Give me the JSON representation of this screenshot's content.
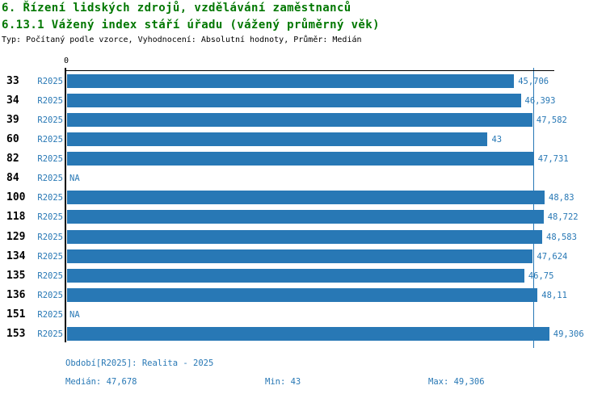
{
  "title": "6. Řízení lidských zdrojů, vzdělávání zaměstnanců",
  "subtitle": "6.13.1 Vážený index stáří úřadu (vážený průměrný věk)",
  "meta_line": "Typ: Počítaný podle vzorce, Vyhodnocení: Absolutní hodnoty, Průměr: Medián",
  "colors": {
    "bar": "#2878b5",
    "blue_text": "#2878b5",
    "title_green": "#007700",
    "axis": "#000000",
    "background": "#ffffff"
  },
  "chart_data": {
    "type": "bar",
    "orientation": "horizontal",
    "title": "6.13.1 Vážený index stáří úřadu (vážený průměrný věk)",
    "xlabel": "",
    "ylabel": "",
    "xlim": [
      0,
      49.82
    ],
    "x_tick_labels": [
      "0"
    ],
    "grid": false,
    "legend_position": "none",
    "series_name": "R2025",
    "median_value": 47.678,
    "min_value": 43,
    "max_value": 49.306,
    "rows": [
      {
        "id": "33",
        "period": "R2025",
        "value": 45.706,
        "label": "45,706"
      },
      {
        "id": "34",
        "period": "R2025",
        "value": 46.393,
        "label": "46,393"
      },
      {
        "id": "39",
        "period": "R2025",
        "value": 47.582,
        "label": "47,582"
      },
      {
        "id": "60",
        "period": "R2025",
        "value": 43,
        "label": "43"
      },
      {
        "id": "82",
        "period": "R2025",
        "value": 47.731,
        "label": "47,731"
      },
      {
        "id": "84",
        "period": "R2025",
        "value": null,
        "label": "NA"
      },
      {
        "id": "100",
        "period": "R2025",
        "value": 48.83,
        "label": "48,83"
      },
      {
        "id": "118",
        "period": "R2025",
        "value": 48.722,
        "label": "48,722"
      },
      {
        "id": "129",
        "period": "R2025",
        "value": 48.583,
        "label": "48,583"
      },
      {
        "id": "134",
        "period": "R2025",
        "value": 47.624,
        "label": "47,624"
      },
      {
        "id": "135",
        "period": "R2025",
        "value": 46.75,
        "label": "46,75"
      },
      {
        "id": "136",
        "period": "R2025",
        "value": 48.11,
        "label": "48,11"
      },
      {
        "id": "151",
        "period": "R2025",
        "value": null,
        "label": "NA"
      },
      {
        "id": "153",
        "period": "R2025",
        "value": 49.306,
        "label": "49,306"
      }
    ]
  },
  "footer": {
    "period_line": "Období[R2025]: Realita - 2025",
    "median_label": "Medián: 47,678",
    "min_label": "Min: 43",
    "max_label": "Max: 49,306"
  }
}
